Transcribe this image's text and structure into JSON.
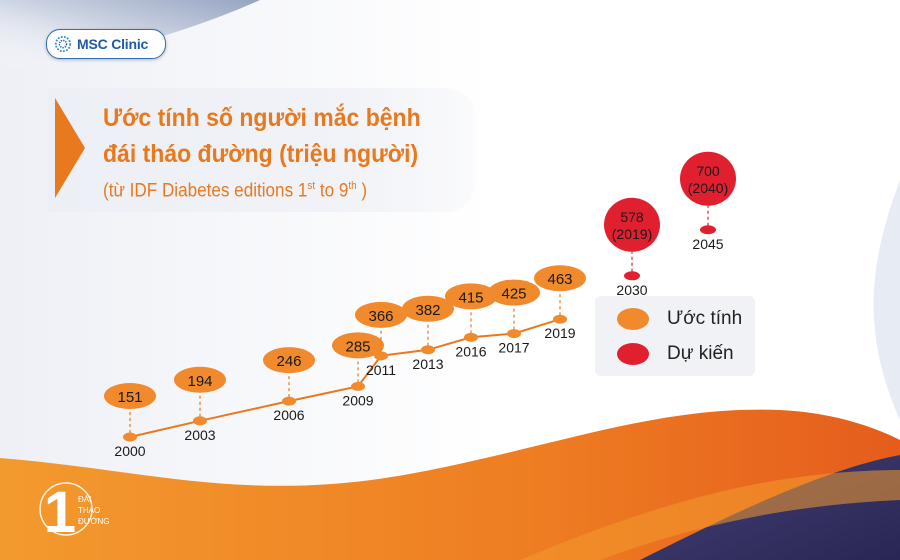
{
  "brand": {
    "name": "MSC Clinic"
  },
  "title": {
    "line1": "Ước tính số người mắc bệnh",
    "line2": "đái tháo đường (triệu người)"
  },
  "subtitle": {
    "prefix": "(từ IDF Diabetes editions 1",
    "sup1": "st",
    "mid": " to 9",
    "sup2": "th",
    "suffix": " )"
  },
  "legend": [
    {
      "label": "Ước tính",
      "color": "#f08a2c"
    },
    {
      "label": "Dự kiến",
      "color": "#e0202e"
    }
  ],
  "colors": {
    "estimate": "#f08a2c",
    "projected": "#e0202e",
    "line": "#e8791f",
    "accent": "#e8791f"
  },
  "badge": {
    "number": "1",
    "line1": "ĐÁI",
    "line2": "THÁO",
    "line3": "ĐƯỜNG"
  },
  "chart_data": {
    "type": "line",
    "title": "Ước tính số người mắc bệnh đái tháo đường (triệu người)",
    "subtitle": "(từ IDF Diabetes editions 1st to 9th )",
    "series": [
      {
        "name": "Ước tính",
        "points": [
          {
            "x": "2000",
            "y": 151,
            "label": "151"
          },
          {
            "x": "2003",
            "y": 194,
            "label": "194"
          },
          {
            "x": "2006",
            "y": 246,
            "label": "246"
          },
          {
            "x": "2009",
            "y": 285,
            "label": "285"
          },
          {
            "x": "2011",
            "y": 366,
            "label": "366"
          },
          {
            "x": "2013",
            "y": 382,
            "label": "382"
          },
          {
            "x": "2016",
            "y": 415,
            "label": "415"
          },
          {
            "x": "2017",
            "y": 425,
            "label": "425"
          },
          {
            "x": "2019",
            "y": 463,
            "label": "463"
          }
        ]
      },
      {
        "name": "Dự kiến",
        "points": [
          {
            "x": "2030",
            "y": 578,
            "label": "578",
            "note": "(2019)"
          },
          {
            "x": "2045",
            "y": 700,
            "label": "700",
            "note": "(2040)"
          }
        ]
      }
    ],
    "legend_position": "right"
  }
}
